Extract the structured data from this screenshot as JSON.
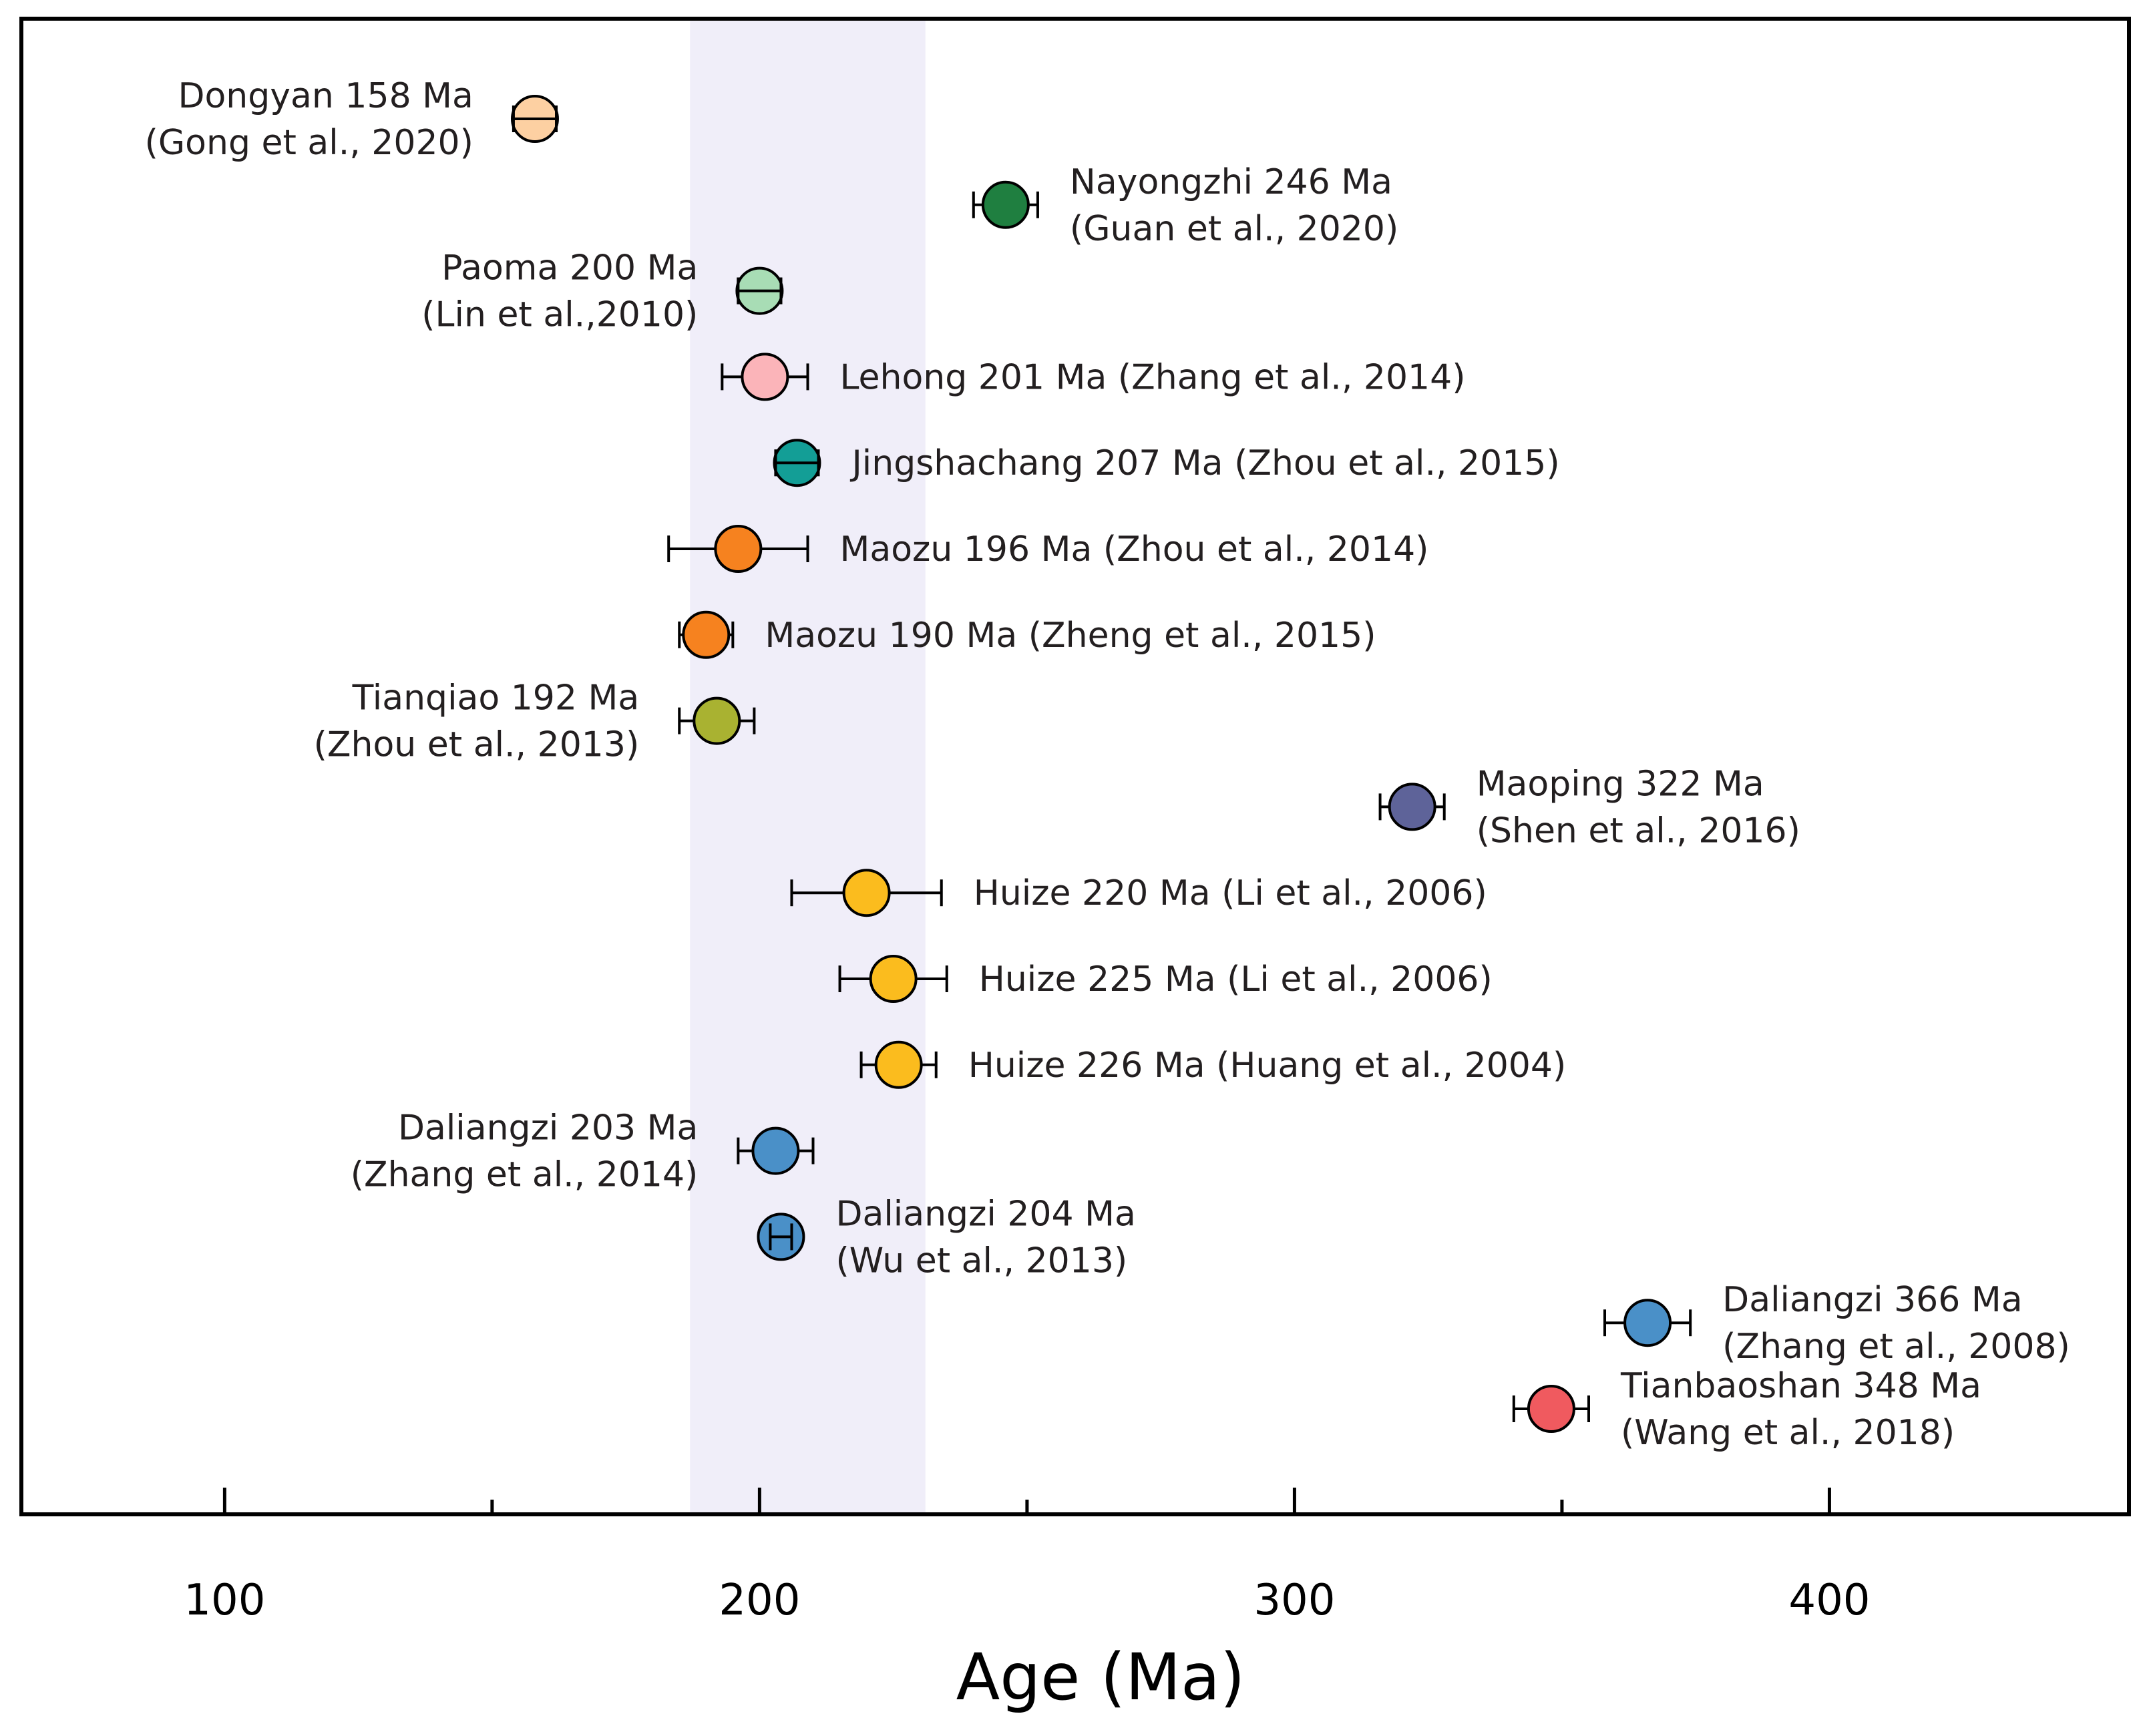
{
  "chart_data": {
    "type": "scatter",
    "title": "",
    "xlabel": "Age (Ma)",
    "ylabel": "",
    "xlim": [
      62,
      456
    ],
    "x_ticks": [
      "100",
      "200",
      "300",
      "400"
    ],
    "x_tick_values": [
      100,
      200,
      300,
      400
    ],
    "x_minor_tick_values": [
      150,
      250,
      350
    ],
    "highlight_band": {
      "from": 187,
      "to": 231,
      "color": "#f0eef9"
    },
    "points": [
      {
        "name": "dongyan-158",
        "lines": [
          "Dongyan 158 Ma",
          "(Gong et al., 2020)"
        ],
        "age": 158,
        "err": 4,
        "color": "#fdd0a2",
        "label_side": "left"
      },
      {
        "name": "nayongzhi-246",
        "lines": [
          "Nayongzhi 246 Ma",
          "(Guan et al., 2020)"
        ],
        "age": 246,
        "err": 6,
        "color": "#1f7f40",
        "label_side": "right"
      },
      {
        "name": "paoma-200",
        "lines": [
          "Paoma 200 Ma",
          "(Lin et al.,2010)"
        ],
        "age": 200,
        "err": 4,
        "color": "#a8ddb5",
        "label_side": "left"
      },
      {
        "name": "lehong-201",
        "lines": [
          "Lehong 201 Ma (Zhang et al., 2014)"
        ],
        "age": 201,
        "err": 8,
        "color": "#fbb4b9",
        "label_side": "right"
      },
      {
        "name": "jingshachang-207",
        "lines": [
          "Jingshachang 207 Ma (Zhou et al., 2015)"
        ],
        "age": 207,
        "err": 4,
        "color": "#139e96",
        "label_side": "right"
      },
      {
        "name": "maozu-196",
        "lines": [
          "Maozu 196 Ma (Zhou et al., 2014)"
        ],
        "age": 196,
        "err": 13,
        "color": "#f6821f",
        "label_side": "right"
      },
      {
        "name": "maozu-190",
        "lines": [
          "Maozu 190 Ma (Zheng et al., 2015)"
        ],
        "age": 190,
        "err": 5,
        "color": "#f6821f",
        "label_side": "right"
      },
      {
        "name": "tianqiao-192",
        "lines": [
          "Tianqiao 192 Ma",
          "(Zhou et al., 2013)"
        ],
        "age": 192,
        "err": 7,
        "color": "#a9b231",
        "label_side": "left"
      },
      {
        "name": "maoping-322",
        "lines": [
          "Maoping 322 Ma",
          "(Shen et al., 2016)"
        ],
        "age": 322,
        "err": 6,
        "color": "#5e6399",
        "label_side": "right"
      },
      {
        "name": "huize-220",
        "lines": [
          "Huize 220 Ma (Li et al., 2006)"
        ],
        "age": 220,
        "err": 14,
        "color": "#fbbc1e",
        "label_side": "right"
      },
      {
        "name": "huize-225",
        "lines": [
          "Huize 225 Ma (Li et al., 2006)"
        ],
        "age": 225,
        "err": 10,
        "color": "#fbbc1e",
        "label_side": "right"
      },
      {
        "name": "huize-226",
        "lines": [
          "Huize 226 Ma (Huang et al., 2004)"
        ],
        "age": 226,
        "err": 7,
        "color": "#fbbc1e",
        "label_side": "right"
      },
      {
        "name": "daliangzi-203",
        "lines": [
          "Daliangzi 203 Ma",
          "(Zhang et al., 2014)"
        ],
        "age": 203,
        "err": 7,
        "color": "#4a90c8",
        "label_side": "left"
      },
      {
        "name": "daliangzi-204",
        "lines": [
          "Daliangzi 204 Ma",
          "(Wu et al., 2013)"
        ],
        "age": 204,
        "err": 2,
        "color": "#4a90c8",
        "label_side": "right"
      },
      {
        "name": "daliangzi-366",
        "lines": [
          "Daliangzi 366 Ma",
          "(Zhang et al., 2008)"
        ],
        "age": 366,
        "err": 8,
        "color": "#4a90c8",
        "label_side": "right"
      },
      {
        "name": "tianbaoshan-348",
        "lines": [
          "Tianbaoshan 348 Ma",
          "(Wang et al., 2018)"
        ],
        "age": 348,
        "err": 7,
        "color": "#f05a5f",
        "label_side": "right"
      }
    ]
  }
}
